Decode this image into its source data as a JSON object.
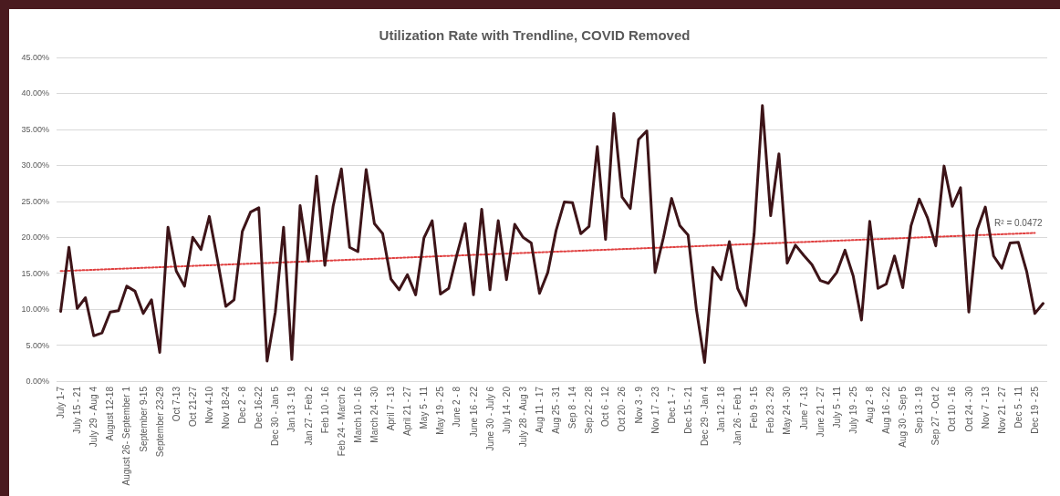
{
  "chart_data": {
    "type": "line",
    "title": "Utilization Rate with Trendline, COVID Removed",
    "categories": [
      "July 1-7",
      null,
      "July 15 - 21",
      null,
      "July 29 - Aug 4",
      null,
      "August 12-18",
      null,
      "August 26- September 1",
      null,
      "September 9-15",
      null,
      "September 23-29",
      null,
      "Oct 7-13",
      null,
      "Oct 21-27",
      null,
      "Nov 4-10",
      null,
      "Nov 18-24",
      null,
      "Dec 2 - 8",
      null,
      "Dec 16-22",
      null,
      "Dec 30 - Jan 5",
      null,
      "Jan 13 - 19",
      null,
      "Jan 27 - Feb 2",
      null,
      "Feb 10 - 16",
      null,
      "Feb 24 - March 2",
      null,
      "March 10 - 16",
      null,
      "March 24 - 30",
      null,
      "April 7 - 13",
      null,
      "April 21 - 27",
      null,
      "May 5 - 11",
      null,
      "May 19 - 25",
      null,
      "June 2 - 8",
      null,
      "June 16 - 22",
      null,
      "June 30 - July 6",
      null,
      "July 14 - 20",
      null,
      "July 28 - Aug 3",
      null,
      "Aug 11 - 17",
      null,
      "Aug 25 - 31",
      null,
      "Sep 8 - 14",
      null,
      "Sep 22 - 28",
      null,
      "Oct 6 - 12",
      null,
      "Oct 20 - 26",
      null,
      "Nov 3 - 9",
      null,
      "Nov 17 - 23",
      null,
      "Dec 1 - 7",
      null,
      "Dec 15 - 21",
      null,
      "Dec 29 - Jan 4",
      null,
      "Jan 12 - 18",
      null,
      "Jan 26 - Feb 1",
      null,
      "Feb 9 - 15",
      null,
      "Feb 23 - 29",
      null,
      "May 24 - 30",
      null,
      "June 7 -13",
      null,
      "June 21 - 27",
      null,
      "July 5 - 11",
      null,
      "July 19 - 25",
      null,
      "Aug 2 - 8",
      null,
      "Aug 16 - 22",
      null,
      "Aug 30 - Sep 5",
      null,
      "Sep 13 - 19",
      null,
      "Sep 27 - Oct 2",
      null,
      "Oct 10 - 16",
      null,
      "Oct 24 - 30",
      null,
      "Nov 7 - 13",
      null,
      "Nov 21 - 27",
      null,
      "Dec 5 - 11",
      null,
      "Dec 19 - 25",
      null
    ],
    "series": [
      {
        "color": "#3d1418",
        "values": [
          9.7,
          18.6,
          10.1,
          11.6,
          6.3,
          6.7,
          9.6,
          9.8,
          13.2,
          12.5,
          9.4,
          11.3,
          4.0,
          21.4,
          15.3,
          13.2,
          20.0,
          18.3,
          22.9,
          16.8,
          10.4,
          11.3,
          20.8,
          23.5,
          24.1,
          2.8,
          9.6,
          21.4,
          3.0,
          24.4,
          16.7,
          28.5,
          16.1,
          24.3,
          29.5,
          18.6,
          18.0,
          29.4,
          21.9,
          20.5,
          14.2,
          12.7,
          14.8,
          12.0,
          19.9,
          22.3,
          12.1,
          12.9,
          17.6,
          21.9,
          12.0,
          23.9,
          12.7,
          22.3,
          14.1,
          21.8,
          20.0,
          19.2,
          12.2,
          15.1,
          20.9,
          24.9,
          24.8,
          20.5,
          21.5,
          32.6,
          19.7,
          37.2,
          25.6,
          24.0,
          33.6,
          34.8,
          15.1,
          19.9,
          25.4,
          21.6,
          20.3,
          10.0,
          2.6,
          15.8,
          14.1,
          19.4,
          12.9,
          10.5,
          20.5,
          38.3,
          23.0,
          31.6,
          16.4,
          18.9,
          17.5,
          16.2,
          14.0,
          13.6,
          15.1,
          18.2,
          14.6,
          8.5,
          22.2,
          12.9,
          13.5,
          17.4,
          13.0,
          21.6,
          25.3,
          22.7,
          18.8,
          29.9,
          24.3,
          26.9,
          9.6,
          21.0,
          24.2,
          17.4,
          15.7,
          19.2,
          19.3,
          15.3,
          9.4,
          10.8
        ]
      },
      {
        "type": "line",
        "color": "#e04040",
        "line_style": "dotted",
        "x": [
          "July 1-7",
          "Dec 19 - 25"
        ],
        "values": [
          15.3,
          20.6
        ]
      }
    ],
    "ylim": [
      0,
      45
    ],
    "yticks": [
      {
        "value": 0,
        "label": "0.00%"
      },
      {
        "value": 5,
        "label": "5.00%"
      },
      {
        "value": 10,
        "label": "10.00%"
      },
      {
        "value": 15,
        "label": "15.00%"
      },
      {
        "value": 20,
        "label": "20.00%"
      },
      {
        "value": 25,
        "label": "25.00%"
      },
      {
        "value": 30,
        "label": "30.00%"
      },
      {
        "value": 35,
        "label": "35.00%"
      },
      {
        "value": 40,
        "label": "40.00%"
      },
      {
        "value": 45,
        "label": "45.00%"
      }
    ],
    "grid": "y",
    "marker": "none",
    "annotations": [
      {
        "text": "R² = 0.0472",
        "x": "Dec 5 - 11",
        "y": 20.6
      }
    ]
  }
}
